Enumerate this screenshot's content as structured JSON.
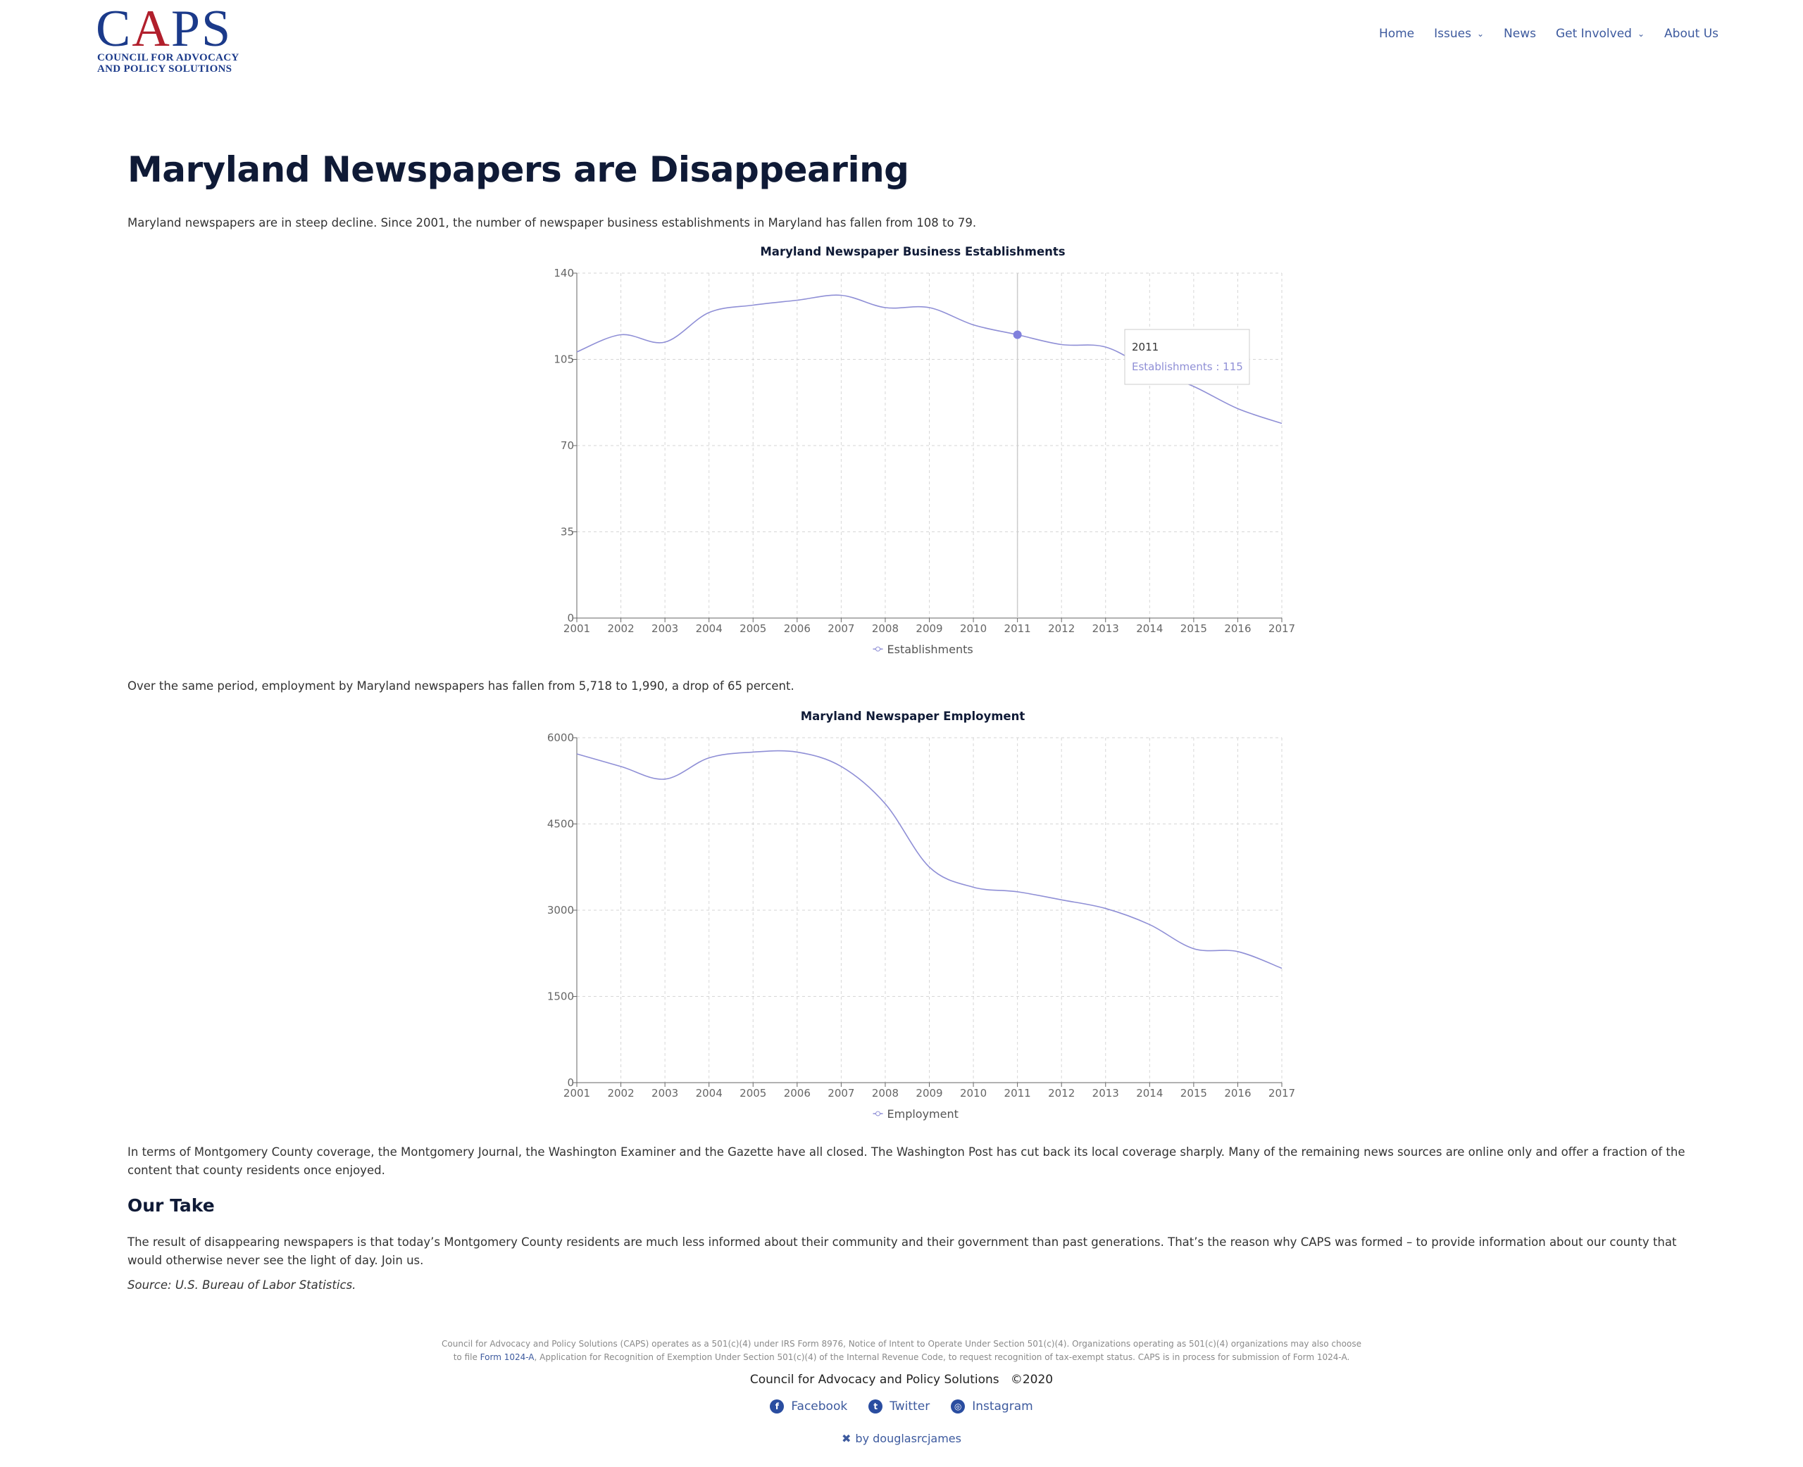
{
  "header": {
    "logo_text": "CAPS",
    "logo_line1": "COUNCIL FOR ADVOCACY",
    "logo_line2": "AND POLICY SOLUTIONS",
    "nav": [
      {
        "label": "Home",
        "dropdown": false
      },
      {
        "label": "Issues",
        "dropdown": true
      },
      {
        "label": "News",
        "dropdown": false
      },
      {
        "label": "Get Involved",
        "dropdown": true
      },
      {
        "label": "About Us",
        "dropdown": false
      }
    ]
  },
  "main": {
    "title": "Maryland Newspapers are Disappearing",
    "intro": "Maryland newspapers are in steep decline. Since 2001, the number of newspaper business establishments in Maryland has fallen from 108 to 79.",
    "employment_intro": "Over the same period, employment by Maryland newspapers has fallen from 5,718 to 1,990, a drop of 65 percent.",
    "coverage": "In terms of Montgomery County coverage, the Montgomery Journal, the Washington Examiner and the Gazette have all closed. The Washington Post has cut back its local coverage sharply. Many of the remaining news sources are online only and offer a fraction of the content that county residents once enjoyed.",
    "our_take_heading": "Our Take",
    "our_take": "The result of disappearing newspapers is that today’s Montgomery County residents are much less informed about their community and their government than past generations. That’s the reason why CAPS was formed – to provide information about our county that would otherwise never see the light of day. Join us.",
    "source": "Source: U.S. Bureau of Labor Statistics.",
    "tooltip": {
      "year": "2011",
      "text": "Establishments : 115"
    }
  },
  "chart_data": [
    {
      "type": "line",
      "title": "Maryland Newspaper Business Establishments",
      "x": [
        "2001",
        "2002",
        "2003",
        "2004",
        "2005",
        "2006",
        "2007",
        "2008",
        "2009",
        "2010",
        "2011",
        "2012",
        "2013",
        "2014",
        "2015",
        "2016",
        "2017"
      ],
      "series": [
        {
          "name": "Establishments",
          "values": [
            108,
            115,
            112,
            124,
            127,
            129,
            131,
            126,
            126,
            119,
            115,
            111,
            110,
            101,
            94,
            85,
            79
          ]
        }
      ],
      "ylim": [
        0,
        140
      ],
      "yticks": [
        0,
        35,
        70,
        105,
        140
      ],
      "grid": true,
      "legend": "bottom",
      "color": "#8f8fd6"
    },
    {
      "type": "line",
      "title": "Maryland Newspaper Employment",
      "x": [
        "2001",
        "2002",
        "2003",
        "2004",
        "2005",
        "2006",
        "2007",
        "2008",
        "2009",
        "2010",
        "2011",
        "2012",
        "2013",
        "2014",
        "2015",
        "2016",
        "2017"
      ],
      "series": [
        {
          "name": "Employment",
          "values": [
            5718,
            5500,
            5280,
            5650,
            5750,
            5750,
            5500,
            4850,
            3750,
            3400,
            3320,
            3180,
            3030,
            2750,
            2330,
            2280,
            1990
          ]
        }
      ],
      "ylim": [
        0,
        6000
      ],
      "yticks": [
        0,
        1500,
        3000,
        4500,
        6000
      ],
      "grid": true,
      "legend": "bottom",
      "color": "#8f8fd6"
    }
  ],
  "footer": {
    "notice_a": "Council for Advocacy and Policy Solutions (CAPS) operates as a 501(c)(4) under IRS Form 8976, Notice of Intent to Operate Under Section 501(c)(4). Organizations operating as 501(c)(4) organizations may also choose",
    "notice_b_pre": "to file ",
    "notice_b_link": "Form 1024-A",
    "notice_b_post": ", Application for Recognition of Exemption Under Section 501(c)(4) of the Internal Revenue Code, to request recognition of tax-exempt status. CAPS is in process for submission of Form 1024-A.",
    "org": "Council for Advocacy and Policy Solutions   ©2020",
    "social": [
      {
        "label": "Facebook",
        "icon": "f"
      },
      {
        "label": "Twitter",
        "icon": "t"
      },
      {
        "label": "Instagram",
        "icon": "◎"
      }
    ],
    "by": "by douglasrcjames"
  }
}
